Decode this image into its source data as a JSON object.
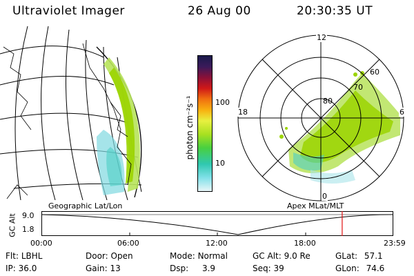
{
  "header": {
    "instrument": "Ultraviolet Imager",
    "date": "26 Aug 00",
    "time": "20:30:35 UT"
  },
  "left_panel": {
    "caption": "Geographic Lat/Lon"
  },
  "right_panel": {
    "caption": "Apex MLat/MLT",
    "mlt_labels": {
      "top": "12",
      "left": "18",
      "right": "6",
      "bottom": "0"
    },
    "lat_labels": [
      "80",
      "70",
      "60"
    ]
  },
  "colorbar": {
    "unit_label": "photon cm⁻²s⁻¹",
    "ticks": [
      "100",
      "10"
    ],
    "scale": "log"
  },
  "timeline": {
    "axis_label": "GC Alt",
    "y_ticks": [
      "9.0",
      "1.8"
    ],
    "x_ticks": [
      "00:00",
      "06:00",
      "12:00",
      "18:00",
      "23:59"
    ],
    "current_marker_time": "20:30",
    "marker_color": "#e01010"
  },
  "info": {
    "flt_label": "Flt:",
    "flt_value": "LBHL",
    "ip_label": "IP:",
    "ip_value": "36.0",
    "door_label": "Door:",
    "door_value": "Open",
    "gain_label": "Gain:",
    "gain_value": "13",
    "mode_label": "Mode:",
    "mode_value": "Normal",
    "dsp_label": "Dsp:",
    "dsp_value": "3.9",
    "gcalt_label": "GC Alt:",
    "gcalt_value": "9.0 Re",
    "seq_label": "Seq:",
    "seq_value": "39",
    "glat_label": "GLat:",
    "glat_value": "57.1",
    "glon_label": "GLon:",
    "glon_value": "74.6"
  }
}
